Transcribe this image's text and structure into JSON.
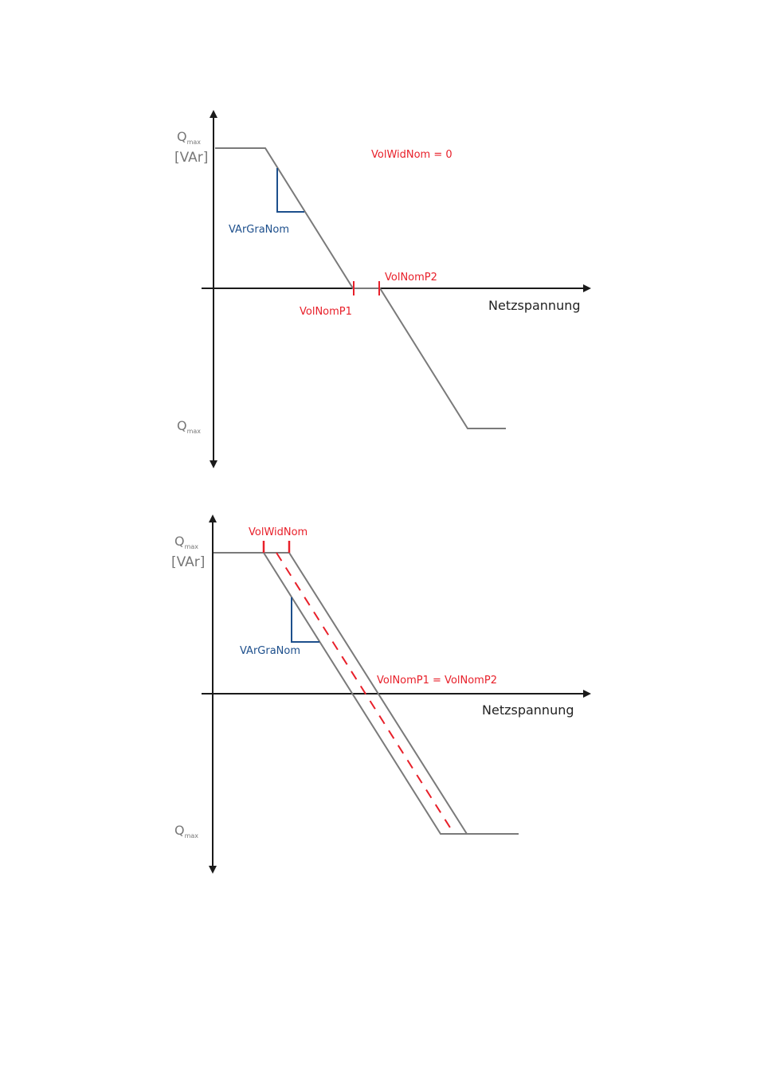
{
  "diagrams": [
    {
      "y_top_label": "Q",
      "y_top_sub": "max",
      "y_unit": "[VAr]",
      "y_bottom_label": "Q",
      "y_bottom_sub": "max",
      "x_label": "Netzspannung",
      "title_label": "VolWidNom = 0",
      "gradient_label": "VArGraNom",
      "p1_label": "VolNomP1",
      "p2_label": "VolNomP2"
    },
    {
      "y_top_label": "Q",
      "y_top_sub": "max",
      "y_unit": "[VAr]",
      "y_bottom_label": "Q",
      "y_bottom_sub": "max",
      "x_label": "Netzspannung",
      "width_label": "VolWidNom",
      "gradient_label": "VArGraNom",
      "p_label": "VolNomP1 = VolNomP2"
    }
  ],
  "colors": {
    "curve": "#7a7a7a",
    "axis": "#1a1a1a",
    "marker": "#e8202a",
    "gradient": "#1d4f8c"
  }
}
